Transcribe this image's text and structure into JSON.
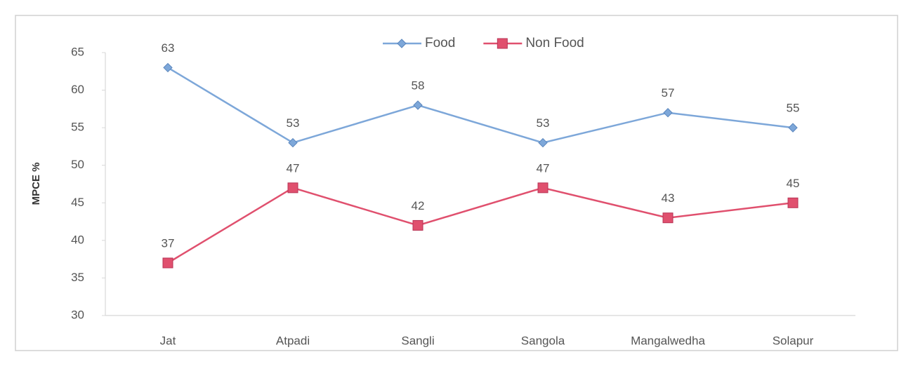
{
  "chart_data": {
    "type": "line",
    "y_label": "MPCE %",
    "categories": [
      "Jat",
      "Atpadi",
      "Sangli",
      "Sangola",
      "Mangalwedha",
      "Solapur"
    ],
    "series": [
      {
        "name": "Food",
        "color": "#7da7d9",
        "marker": "diamond",
        "values": [
          63,
          53,
          58,
          53,
          57,
          55
        ]
      },
      {
        "name": "Non Food",
        "color": "#e0506e",
        "marker": "square",
        "values": [
          37,
          47,
          42,
          47,
          43,
          45
        ]
      }
    ],
    "ylim": [
      30,
      65
    ],
    "yticks": [
      30,
      35,
      40,
      45,
      50,
      55,
      60,
      65
    ],
    "grid": false,
    "legend": "top",
    "data_labels": true
  }
}
